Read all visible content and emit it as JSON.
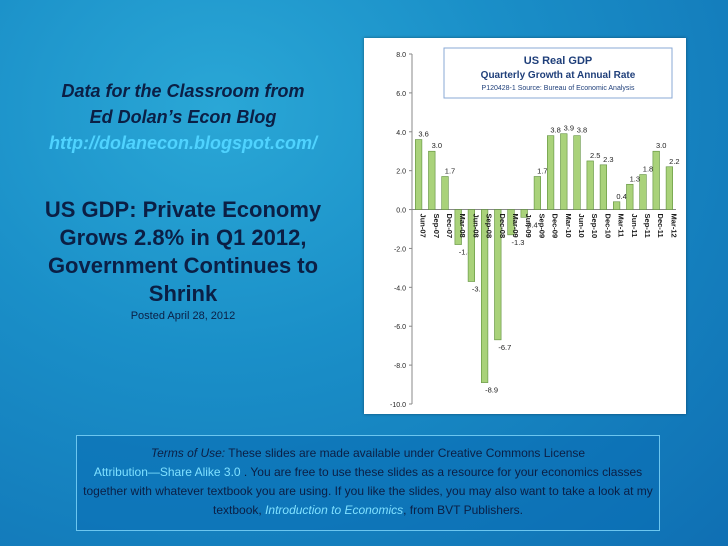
{
  "left": {
    "line1": "Data for the Classroom from",
    "line2": "Ed Dolan’s Econ Blog",
    "url": "http://dolanecon.blogspot.com/",
    "headline_lines": [
      "US GDP: Private Economy",
      "Grows 2.8% in Q1 2012,",
      "Government Continues to",
      "Shrink"
    ],
    "posted": "Posted  April 28, 2012"
  },
  "terms": {
    "label": "Terms of Use:",
    "text1": " These slides are made available under Creative Commons License",
    "license_link": "Attribution—Share Alike 3.0",
    "text2": " . You are free to use these slides as a resource for your economics classes together with whatever textbook you are using. If you like the slides, you may also want to take a look at my textbook, ",
    "book_link": "Introduction to Economics",
    "text3": ", from BVT Publishers."
  },
  "chart_data": {
    "type": "bar",
    "title": "US  Real GDP",
    "subtitle": "Quarterly Growth at Annual Rate",
    "source": "P120428-1 Source: Bureau of Economic Analysis",
    "categories": [
      "Jun-07",
      "Sep-07",
      "Dec-07",
      "Mar-08",
      "Jun-08",
      "Sep-08",
      "Dec-08",
      "Mar-09",
      "Jun-09",
      "Sep-09",
      "Dec-09",
      "Mar-10",
      "Jun-10",
      "Sep-10",
      "Dec-10",
      "Mar-11",
      "Jun-11",
      "Sep-11",
      "Dec-11",
      "Mar-12"
    ],
    "tick_labels": [
      "Jun-07",
      "Sep-07",
      "Dec-07",
      "Mar-08",
      "Jun-08",
      "Sep-08",
      "Dec-08",
      "Mar-09",
      "Jun-09",
      "Sep-09",
      "Dec-09",
      "Mar-10",
      "Jun-10",
      "Sep-10",
      "Dec-10",
      "Mar-11",
      "Jun-11",
      "Sep-11",
      "Dec-11",
      "Mar-12"
    ],
    "values": [
      3.6,
      3.0,
      1.7,
      -1.8,
      -3.7,
      -8.9,
      -6.7,
      -1.3,
      -0.4,
      1.7,
      3.8,
      3.9,
      3.8,
      2.5,
      2.3,
      0.4,
      1.3,
      1.8,
      3.0,
      2.2
    ],
    "value_labels": [
      "3.6",
      "3.0",
      "1.7",
      "-1.8",
      "-3.7",
      "-8.9",
      "-6.7",
      "-1.3",
      "-0.4",
      "1.7",
      "3.8",
      "3.9",
      "3.8",
      "2.5",
      "2.3",
      "0.4",
      "1.3",
      "1.8",
      "3.0",
      "2.2"
    ],
    "y_ticks": [
      "8.0",
      "6.0",
      "4.0",
      "2.0",
      "0.0",
      "-2.0",
      "-4.0",
      "-6.0",
      "-8.0",
      "-10.0"
    ],
    "ylim": [
      -10,
      8
    ],
    "grid": false,
    "colors": {
      "bar_fill": "#a9d27a",
      "bar_stroke": "#5e8f3b",
      "title": "#1f3f7a",
      "box_border": "#8aa9d6"
    }
  }
}
